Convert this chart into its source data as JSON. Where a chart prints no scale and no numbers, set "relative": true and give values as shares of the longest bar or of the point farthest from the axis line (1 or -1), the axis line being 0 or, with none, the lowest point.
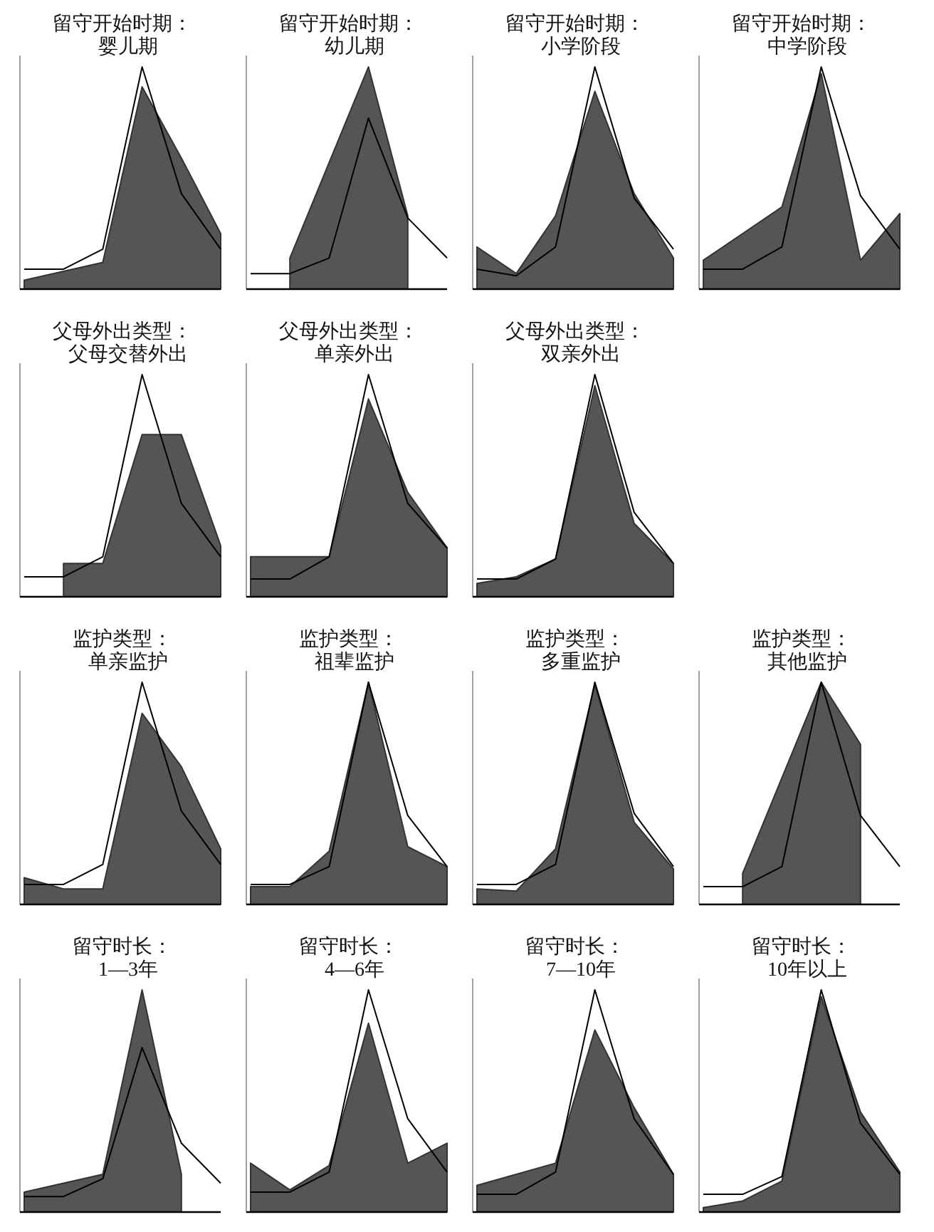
{
  "chart_data": [
    {
      "type": "area",
      "title": "留守开始时期：",
      "subtitle": "婴儿期",
      "categories": [
        null,
        null,
        null,
        null,
        null,
        null
      ],
      "relative": true,
      "series": [
        {
          "type": "line",
          "color": "#000000",
          "values": [
            0.09,
            0.09,
            0.18,
            1,
            0.43,
            0.18
          ]
        },
        {
          "color": "#555555",
          "values": [
            0.04,
            0.08,
            0.12,
            0.91,
            0.59,
            0.25
          ]
        }
      ]
    },
    {
      "type": "area",
      "title": "留守开始时期：",
      "subtitle": "幼儿期",
      "categories": [
        null,
        null,
        null,
        null,
        null,
        null
      ],
      "relative": true,
      "series": [
        {
          "type": "line",
          "color": "#000000",
          "values": [
            0.07,
            0.07,
            0.14,
            0.77,
            0.32,
            0.14
          ]
        },
        {
          "color": "#555555",
          "values": [
            null,
            0.14,
            0.57,
            1,
            0.33,
            null
          ]
        }
      ]
    },
    {
      "type": "area",
      "title": "留守开始时期：",
      "subtitle": "小学阶段",
      "categories": [
        null,
        null,
        null,
        null,
        null,
        null
      ],
      "relative": true,
      "series": [
        {
          "type": "line",
          "color": "#000000",
          "values": [
            0.09,
            0.06,
            0.19,
            1,
            0.41,
            0.18
          ]
        },
        {
          "color": "#555555",
          "values": [
            0.19,
            0.07,
            0.33,
            0.89,
            0.43,
            0.14
          ]
        }
      ]
    },
    {
      "type": "area",
      "title": "留守开始时期：",
      "subtitle": "中学阶段",
      "categories": [
        null,
        null,
        null,
        null,
        null,
        null
      ],
      "relative": true,
      "series": [
        {
          "type": "line",
          "color": "#000000",
          "values": [
            0.09,
            0.09,
            0.19,
            1,
            0.42,
            0.18
          ]
        },
        {
          "color": "#555555",
          "values": [
            0.13,
            0.25,
            0.37,
            0.97,
            0.13,
            0.34
          ]
        }
      ]
    },
    {
      "type": "area",
      "title": "父母外出类型：",
      "subtitle": "父母交替外出",
      "categories": [
        null,
        null,
        null,
        null,
        null,
        null
      ],
      "relative": true,
      "series": [
        {
          "type": "line",
          "color": "#000000",
          "values": [
            0.09,
            0.09,
            0.18,
            1,
            0.42,
            0.18
          ]
        },
        {
          "color": "#555555",
          "values": [
            null,
            0.15,
            0.15,
            0.73,
            0.73,
            0.23
          ]
        }
      ]
    },
    {
      "type": "area",
      "title": "父母外出类型：",
      "subtitle": "单亲外出",
      "categories": [
        null,
        null,
        null,
        null,
        null,
        null
      ],
      "relative": true,
      "series": [
        {
          "type": "line",
          "color": "#000000",
          "values": [
            0.08,
            0.08,
            0.18,
            1,
            0.42,
            0.22
          ]
        },
        {
          "color": "#555555",
          "values": [
            0.18,
            0.18,
            0.18,
            0.89,
            0.47,
            0.22
          ]
        }
      ]
    },
    {
      "type": "area",
      "title": "父母外出类型：",
      "subtitle": "双亲外出",
      "categories": [
        null,
        null,
        null,
        null,
        null,
        null
      ],
      "relative": true,
      "series": [
        {
          "type": "line",
          "color": "#000000",
          "values": [
            0.08,
            0.08,
            0.17,
            1,
            0.38,
            0.15
          ]
        },
        {
          "color": "#555555",
          "values": [
            0.06,
            0.09,
            0.17,
            0.95,
            0.33,
            0.15
          ]
        }
      ]
    },
    {
      "type": "area",
      "title": "监护类型：",
      "subtitle": "单亲监护",
      "categories": [
        null,
        null,
        null,
        null,
        null,
        null
      ],
      "relative": true,
      "series": [
        {
          "type": "line",
          "color": "#000000",
          "values": [
            0.09,
            0.09,
            0.18,
            1,
            0.42,
            0.18
          ]
        },
        {
          "color": "#555555",
          "values": [
            0.12,
            0.07,
            0.07,
            0.86,
            0.62,
            0.25
          ]
        }
      ]
    },
    {
      "type": "area",
      "title": "监护类型：",
      "subtitle": "祖辈监护",
      "categories": [
        null,
        null,
        null,
        null,
        null,
        null
      ],
      "relative": true,
      "series": [
        {
          "type": "line",
          "color": "#000000",
          "values": [
            0.09,
            0.09,
            0.17,
            1,
            0.4,
            0.17
          ]
        },
        {
          "color": "#555555",
          "values": [
            0.08,
            0.08,
            0.24,
            1,
            0.26,
            0.17
          ]
        }
      ]
    },
    {
      "type": "area",
      "title": "监护类型：",
      "subtitle": "多重监护",
      "categories": [
        null,
        null,
        null,
        null,
        null,
        null
      ],
      "relative": true,
      "series": [
        {
          "type": "line",
          "color": "#000000",
          "values": [
            0.09,
            0.09,
            0.18,
            1,
            0.41,
            0.17
          ]
        },
        {
          "color": "#555555",
          "values": [
            0.07,
            0.06,
            0.25,
            0.99,
            0.37,
            0.16
          ]
        }
      ]
    },
    {
      "type": "area",
      "title": "监护类型：",
      "subtitle": "其他监护",
      "categories": [
        null,
        null,
        null,
        null,
        null,
        null
      ],
      "relative": true,
      "series": [
        {
          "type": "line",
          "color": "#000000",
          "values": [
            0.08,
            0.08,
            0.17,
            1,
            0.4,
            0.17
          ]
        },
        {
          "color": "#555555",
          "values": [
            null,
            0.14,
            0.57,
            1,
            0.72,
            null
          ]
        }
      ]
    },
    {
      "type": "area",
      "title": "留守时长：",
      "subtitle": "1—3年",
      "categories": [
        null,
        null,
        null,
        null,
        null,
        null
      ],
      "relative": true,
      "series": [
        {
          "type": "line",
          "color": "#000000",
          "values": [
            0.07,
            0.07,
            0.15,
            0.74,
            0.31,
            0.13
          ]
        },
        {
          "color": "#555555",
          "values": [
            0.09,
            0.13,
            0.17,
            1,
            0.17,
            null
          ]
        }
      ]
    },
    {
      "type": "area",
      "title": "留守时长：",
      "subtitle": "4—6年",
      "categories": [
        null,
        null,
        null,
        null,
        null,
        null
      ],
      "relative": true,
      "series": [
        {
          "type": "line",
          "color": "#000000",
          "values": [
            0.09,
            0.09,
            0.18,
            1,
            0.42,
            0.18
          ]
        },
        {
          "color": "#555555",
          "values": [
            0.22,
            0.1,
            0.21,
            0.85,
            0.22,
            0.31
          ]
        }
      ]
    },
    {
      "type": "area",
      "title": "留守时长：",
      "subtitle": "7—10年",
      "categories": [
        null,
        null,
        null,
        null,
        null,
        null
      ],
      "relative": true,
      "series": [
        {
          "type": "line",
          "color": "#000000",
          "values": [
            0.08,
            0.08,
            0.18,
            1,
            0.42,
            0.17
          ]
        },
        {
          "color": "#555555",
          "values": [
            0.12,
            0.17,
            0.22,
            0.82,
            0.47,
            0.17
          ]
        }
      ]
    },
    {
      "type": "area",
      "title": "留守时长：",
      "subtitle": "10年以上",
      "categories": [
        null,
        null,
        null,
        null,
        null,
        null
      ],
      "relative": true,
      "series": [
        {
          "type": "line",
          "color": "#000000",
          "values": [
            0.08,
            0.08,
            0.16,
            1,
            0.4,
            0.17
          ]
        },
        {
          "color": "#555555",
          "values": [
            0.02,
            0.05,
            0.14,
            0.97,
            0.45,
            0.18
          ]
        }
      ]
    }
  ]
}
